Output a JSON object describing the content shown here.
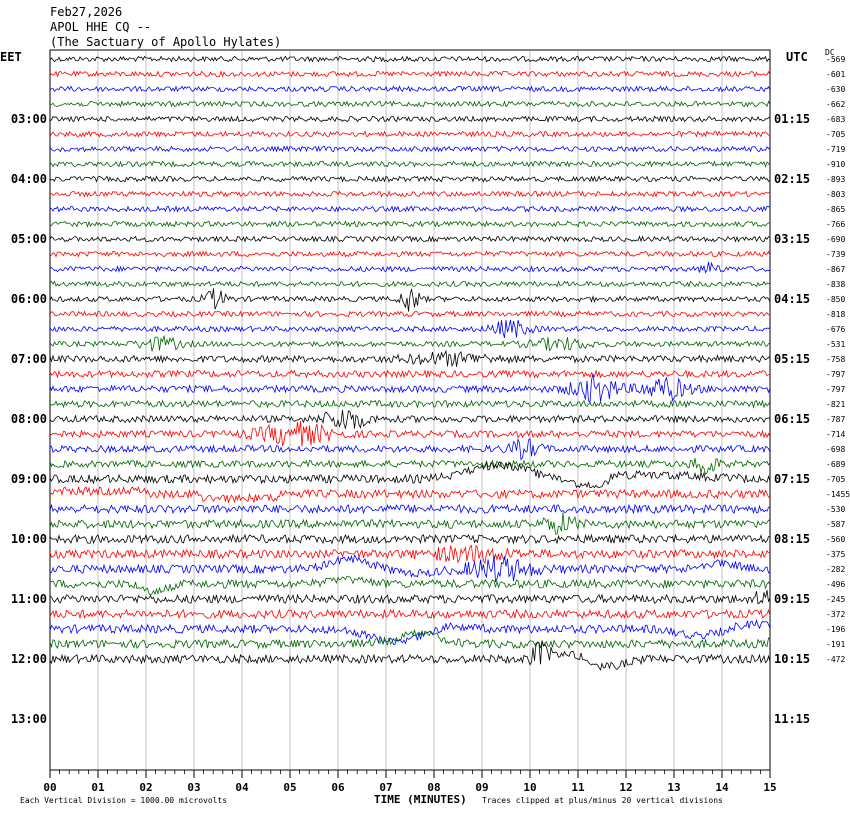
{
  "header": {
    "date": "Feb27,2026",
    "station": "APOL HHE CQ --",
    "site": "(The Sactuary of Apollo Hylates)"
  },
  "left_tz": "EET",
  "right_tz": "UTC",
  "dc_label": "DC",
  "footer": {
    "scale_note": "Each Vertical Division = 1000.00 microvolts",
    "xlabel": "TIME (MINUTES)",
    "clip_note": "Traces clipped at plus/minus 20 vertical divisions"
  },
  "colors": {
    "black": "#000000",
    "red": "#ff0000",
    "blue": "#0000ff",
    "green": "#006400"
  },
  "chart_data": {
    "type": "line",
    "title": "Feb27,2026 APOL HHE CQ -- (The Sactuary of Apollo Hylates)",
    "xlabel": "TIME (MINUTES)",
    "xlim": [
      0,
      15
    ],
    "x_ticks": [
      "00",
      "01",
      "02",
      "03",
      "04",
      "05",
      "06",
      "07",
      "08",
      "09",
      "10",
      "11",
      "12",
      "13",
      "14",
      "15"
    ],
    "left_time_labels": [
      "03:00",
      "04:00",
      "05:00",
      "06:00",
      "07:00",
      "08:00",
      "09:00",
      "10:00",
      "11:00",
      "12:00",
      "13:00"
    ],
    "right_time_labels": [
      "01:15",
      "02:15",
      "03:15",
      "04:15",
      "05:15",
      "06:15",
      "07:15",
      "08:15",
      "09:15",
      "10:15",
      "11:15"
    ],
    "trace_colors": [
      "black",
      "red",
      "blue",
      "green"
    ],
    "dc_offsets": [
      "-569",
      "-601",
      "-630",
      "-662",
      "-683",
      "-705",
      "-719",
      "-910",
      "-893",
      "-803",
      "-865",
      "-766",
      "-690",
      "-739",
      "-867",
      "-838",
      "-850",
      "-818",
      "-676",
      "-531",
      "-758",
      "-797",
      "-797",
      "-821",
      "-787",
      "-714",
      "-698",
      "-689",
      "-705",
      "-1455",
      "-530",
      "-587",
      "-560",
      "-375",
      "-282",
      "-496",
      "-245",
      "-372",
      "-196",
      "-191",
      "-472"
    ],
    "grid": true
  }
}
